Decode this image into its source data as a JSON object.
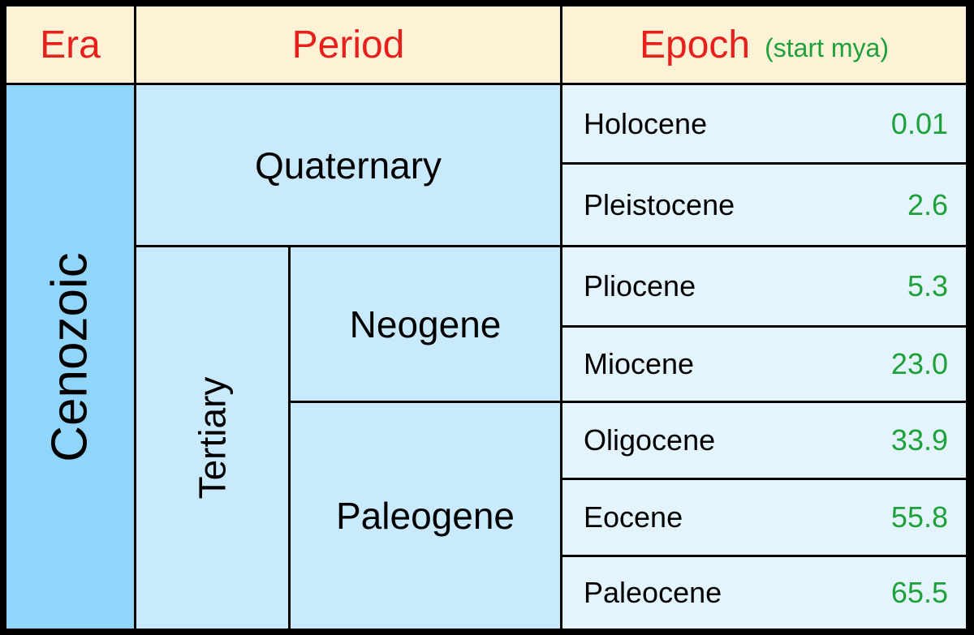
{
  "header": {
    "era": "Era",
    "period": "Period",
    "epoch": "Epoch",
    "epoch_note": "(start mya)"
  },
  "era": "Cenozoic",
  "periods": [
    {
      "name": "Quaternary"
    },
    {
      "name": "Tertiary",
      "subperiods": [
        "Neogene",
        "Paleogene"
      ]
    }
  ],
  "epochs": [
    {
      "name": "Holocene",
      "start": "0.01"
    },
    {
      "name": "Pleistocene",
      "start": "2.6"
    },
    {
      "name": "Pliocene",
      "start": "5.3"
    },
    {
      "name": "Miocene",
      "start": "23.0"
    },
    {
      "name": "Oligocene",
      "start": "33.9"
    },
    {
      "name": "Eocene",
      "start": "55.8"
    },
    {
      "name": "Paleocene",
      "start": "65.5"
    }
  ]
}
